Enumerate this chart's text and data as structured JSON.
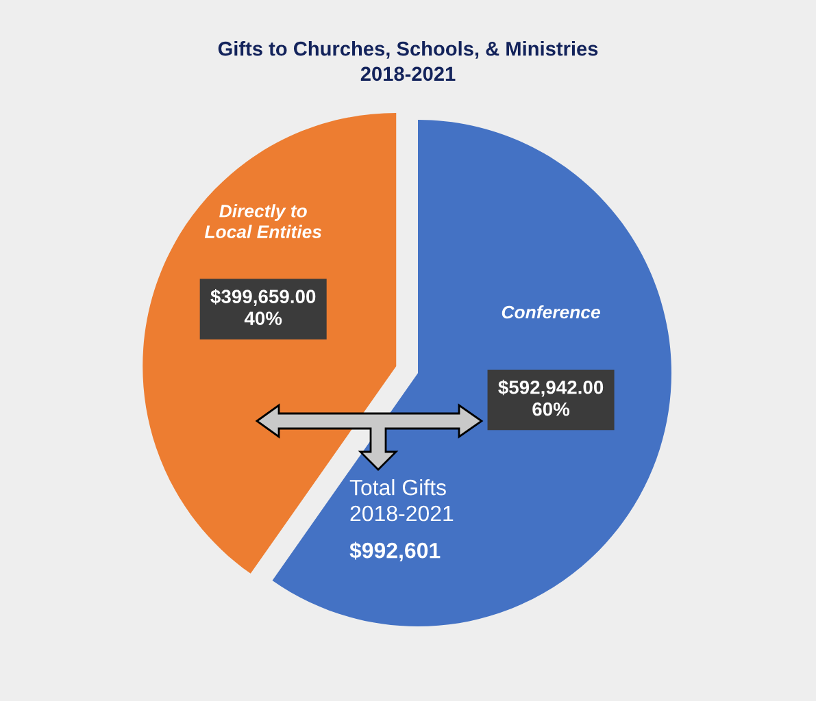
{
  "chart_data": {
    "type": "pie",
    "title": "Gifts to Churches, Schools, & Ministries\n2018-2021",
    "categories": [
      "Directly to\nLocal Entities",
      "Conference"
    ],
    "values": [
      399659,
      592942
    ],
    "colors": [
      "#ed7d31",
      "#4472c4"
    ],
    "value_labels": [
      "$399,659.00\n40%",
      "$592,942.00\n60%"
    ],
    "annotations": [
      "Total Gifts\n2018-2021",
      "$992,601"
    ]
  }
}
